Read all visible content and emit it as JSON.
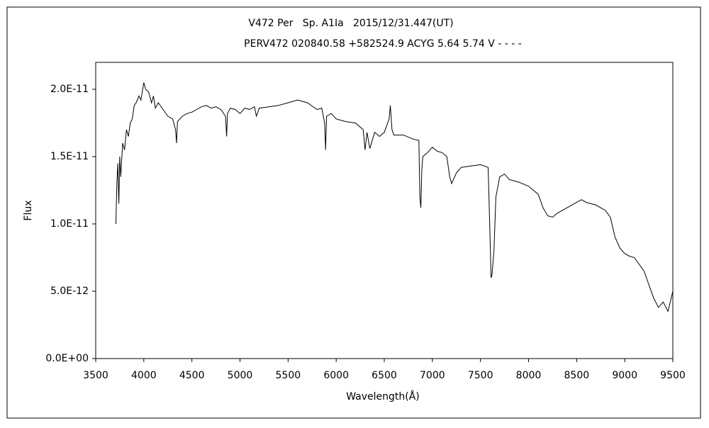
{
  "chart_data": {
    "type": "line",
    "title": "V472 Per   Sp. A1Ⅰa   2015/12/31.447(UT)",
    "subtitle": "PERV472 020840.58 +582524.9 ACYG 5.64 5.74 V - - - -",
    "x_label": "Wavelength(Å)",
    "y_label": "Flux",
    "color": "#000000",
    "grid": false,
    "xlim": [
      3500,
      9500
    ],
    "xticks": [
      3500,
      4000,
      4500,
      5000,
      5500,
      6000,
      6500,
      7000,
      7500,
      8000,
      8500,
      9000,
      9500
    ],
    "ylim": [
      0,
      2.2e-11
    ],
    "yticks": [
      {
        "value": 0,
        "label": "0.0E+00"
      },
      {
        "value": 5e-12,
        "label": "5.0E-12"
      },
      {
        "value": 1e-11,
        "label": "1.0E-11"
      },
      {
        "value": 1.5e-11,
        "label": "1.5E-11"
      },
      {
        "value": 2e-11,
        "label": "2.0E-11"
      }
    ],
    "x": [
      3710,
      3720,
      3730,
      3740,
      3750,
      3760,
      3780,
      3800,
      3820,
      3840,
      3860,
      3880,
      3900,
      3920,
      3950,
      3970,
      4000,
      4020,
      4050,
      4080,
      4100,
      4120,
      4150,
      4200,
      4250,
      4300,
      4330,
      4340,
      4350,
      4400,
      4450,
      4500,
      4550,
      4600,
      4650,
      4700,
      4750,
      4800,
      4850,
      4861,
      4870,
      4900,
      4950,
      5000,
      5050,
      5100,
      5150,
      5170,
      5200,
      5300,
      5400,
      5500,
      5600,
      5700,
      5800,
      5850,
      5880,
      5890,
      5900,
      5950,
      6000,
      6100,
      6200,
      6280,
      6300,
      6320,
      6350,
      6400,
      6450,
      6500,
      6550,
      6563,
      6580,
      6600,
      6700,
      6800,
      6860,
      6870,
      6880,
      6890,
      6900,
      6950,
      7000,
      7050,
      7100,
      7150,
      7180,
      7200,
      7250,
      7300,
      7400,
      7500,
      7580,
      7600,
      7610,
      7620,
      7640,
      7660,
      7700,
      7750,
      7800,
      7900,
      8000,
      8100,
      8150,
      8200,
      8250,
      8300,
      8400,
      8500,
      8550,
      8600,
      8700,
      8800,
      8850,
      8900,
      8950,
      9000,
      9050,
      9100,
      9150,
      9200,
      9250,
      9300,
      9350,
      9400,
      9450,
      9500
    ],
    "values": [
      1e-11,
      1.3e-11,
      1.45e-11,
      1.15e-11,
      1.5e-11,
      1.35e-11,
      1.6e-11,
      1.55e-11,
      1.7e-11,
      1.65e-11,
      1.75e-11,
      1.78e-11,
      1.88e-11,
      1.9e-11,
      1.95e-11,
      1.92e-11,
      2.05e-11,
      2e-11,
      1.98e-11,
      1.9e-11,
      1.95e-11,
      1.86e-11,
      1.9e-11,
      1.85e-11,
      1.8e-11,
      1.78e-11,
      1.7e-11,
      1.6e-11,
      1.76e-11,
      1.8e-11,
      1.82e-11,
      1.83e-11,
      1.85e-11,
      1.87e-11,
      1.88e-11,
      1.86e-11,
      1.87e-11,
      1.85e-11,
      1.8e-11,
      1.65e-11,
      1.82e-11,
      1.86e-11,
      1.85e-11,
      1.82e-11,
      1.86e-11,
      1.85e-11,
      1.87e-11,
      1.8e-11,
      1.86e-11,
      1.87e-11,
      1.88e-11,
      1.9e-11,
      1.92e-11,
      1.9e-11,
      1.85e-11,
      1.86e-11,
      1.75e-11,
      1.55e-11,
      1.8e-11,
      1.82e-11,
      1.78e-11,
      1.76e-11,
      1.75e-11,
      1.7e-11,
      1.55e-11,
      1.68e-11,
      1.56e-11,
      1.68e-11,
      1.65e-11,
      1.68e-11,
      1.78e-11,
      1.88e-11,
      1.7e-11,
      1.66e-11,
      1.66e-11,
      1.63e-11,
      1.62e-11,
      1.2e-11,
      1.12e-11,
      1.4e-11,
      1.5e-11,
      1.53e-11,
      1.57e-11,
      1.54e-11,
      1.53e-11,
      1.5e-11,
      1.35e-11,
      1.3e-11,
      1.38e-11,
      1.42e-11,
      1.43e-11,
      1.44e-11,
      1.42e-11,
      9e-12,
      6e-12,
      6.2e-12,
      8e-12,
      1.2e-11,
      1.35e-11,
      1.37e-11,
      1.33e-11,
      1.31e-11,
      1.28e-11,
      1.22e-11,
      1.12e-11,
      1.06e-11,
      1.05e-11,
      1.08e-11,
      1.12e-11,
      1.16e-11,
      1.18e-11,
      1.16e-11,
      1.14e-11,
      1.1e-11,
      1.05e-11,
      9e-12,
      8.2e-12,
      7.8e-12,
      7.6e-12,
      7.5e-12,
      7e-12,
      6.5e-12,
      5.5e-12,
      4.5e-12,
      3.8e-12,
      4.2e-12,
      3.5e-12,
      5e-12
    ]
  }
}
